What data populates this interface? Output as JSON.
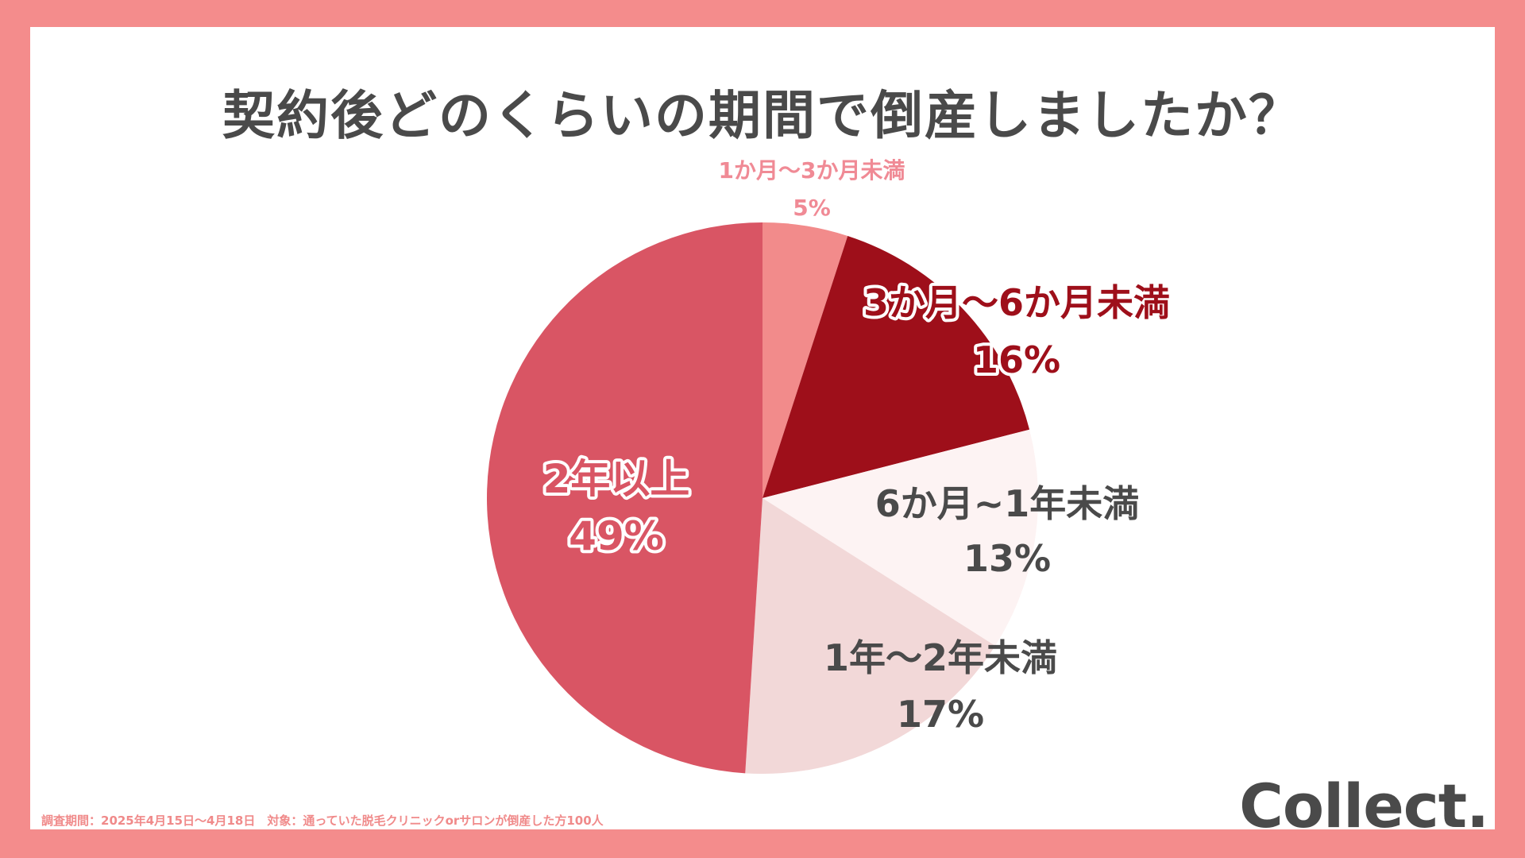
{
  "chart_data": {
    "type": "pie",
    "title": "契約後どのくらいの期間で倒産しましたか？",
    "categories": [
      "1か月～3か月未満",
      "3か月～6か月未満",
      "6か月~1年未満",
      "1年～2年未満",
      "2年以上"
    ],
    "values": [
      5,
      16,
      13,
      17,
      49
    ],
    "value_labels": [
      "5%",
      "16%",
      "13%",
      "17%",
      "49%"
    ],
    "colors": [
      "#f28b8b",
      "#9e0f1a",
      "#fdf3f3",
      "#f2d8d8",
      "#d95564"
    ],
    "label_colors": [
      "#f08a95",
      "#9e0f1a",
      "#4a4a4a",
      "#4a4a4a",
      "#d95564"
    ],
    "start_angle_deg": 0,
    "direction": "clockwise"
  },
  "footnote": "調査期間：2025年4月15日～4月18日　対象：通っていた脱毛クリニックorサロンが倒産した方100人",
  "logo": "Collect."
}
